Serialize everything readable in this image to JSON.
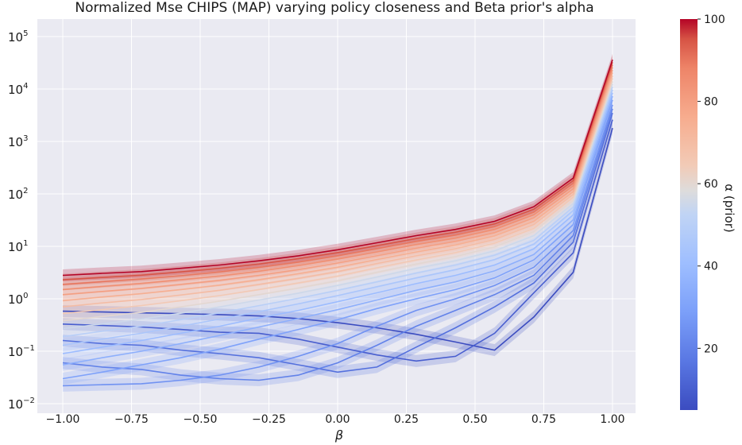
{
  "chart_data": {
    "type": "line",
    "title": "Normalized Mse CHIPS (MAP) varying policy closeness and Beta prior's alpha",
    "xlabel": "β",
    "ylabel": "",
    "yscale": "log",
    "xlim": [
      -1.0,
      1.0
    ],
    "ylim_log10": [
      -2,
      5
    ],
    "x": [
      -1.0,
      -0.857,
      -0.714,
      -0.571,
      -0.429,
      -0.286,
      -0.143,
      0.0,
      0.143,
      0.286,
      0.429,
      0.571,
      0.714,
      0.857,
      1.0
    ],
    "x_ticks": [
      -1.0,
      -0.75,
      -0.5,
      -0.25,
      0.0,
      0.25,
      0.5,
      0.75,
      1.0
    ],
    "x_tick_labels": [
      "−1.00",
      "−0.75",
      "−0.50",
      "−0.25",
      "0.00",
      "0.25",
      "0.50",
      "0.75",
      "1.00"
    ],
    "y_tick_labels": [
      {
        "value": 0.01,
        "base": "10",
        "exp": "−2"
      },
      {
        "value": 0.1,
        "base": "10",
        "exp": "−1"
      },
      {
        "value": 1,
        "base": "10",
        "exp": "0"
      },
      {
        "value": 10,
        "base": "10",
        "exp": "1"
      },
      {
        "value": 100,
        "base": "10",
        "exp": "2"
      },
      {
        "value": 1000,
        "base": "10",
        "exp": "3"
      },
      {
        "value": 10000,
        "base": "10",
        "exp": "4"
      },
      {
        "value": 100000,
        "base": "10",
        "exp": "5"
      }
    ],
    "grid": true,
    "band_relative_width": 0.3,
    "series": [
      {
        "name": "α=5",
        "alpha": 5,
        "values": [
          0.58,
          0.56,
          0.54,
          0.52,
          0.5,
          0.47,
          0.42,
          0.35,
          0.28,
          0.21,
          0.15,
          0.105,
          0.45,
          3.2,
          1800
        ]
      },
      {
        "name": "α=10",
        "alpha": 10,
        "values": [
          0.33,
          0.31,
          0.29,
          0.26,
          0.23,
          0.22,
          0.17,
          0.12,
          0.085,
          0.065,
          0.08,
          0.22,
          1.3,
          7.5,
          2600
        ]
      },
      {
        "name": "α=15",
        "alpha": 15,
        "values": [
          0.16,
          0.14,
          0.13,
          0.105,
          0.09,
          0.075,
          0.055,
          0.04,
          0.05,
          0.12,
          0.28,
          0.7,
          2.0,
          12.0,
          3500
        ]
      },
      {
        "name": "α=20",
        "alpha": 20,
        "values": [
          0.06,
          0.05,
          0.045,
          0.035,
          0.03,
          0.028,
          0.035,
          0.06,
          0.13,
          0.3,
          0.6,
          1.2,
          2.8,
          16.0,
          4200
        ]
      },
      {
        "name": "α=25",
        "alpha": 25,
        "values": [
          0.022,
          0.023,
          0.024,
          0.028,
          0.035,
          0.05,
          0.08,
          0.14,
          0.3,
          0.6,
          1.0,
          1.8,
          4.0,
          20.0,
          5000
        ]
      },
      {
        "name": "α=30",
        "alpha": 30,
        "values": [
          0.03,
          0.04,
          0.055,
          0.075,
          0.11,
          0.17,
          0.26,
          0.4,
          0.65,
          1.0,
          1.5,
          2.5,
          5.5,
          26.0,
          6200
        ]
      },
      {
        "name": "α=35",
        "alpha": 35,
        "values": [
          0.055,
          0.075,
          0.1,
          0.14,
          0.2,
          0.29,
          0.42,
          0.62,
          0.95,
          1.45,
          2.1,
          3.4,
          7.0,
          32.0,
          7300
        ]
      },
      {
        "name": "α=40",
        "alpha": 40,
        "values": [
          0.09,
          0.12,
          0.16,
          0.22,
          0.3,
          0.43,
          0.6,
          0.88,
          1.3,
          1.95,
          2.8,
          4.4,
          9.0,
          40.0,
          8500
        ]
      },
      {
        "name": "α=45",
        "alpha": 45,
        "values": [
          0.13,
          0.17,
          0.22,
          0.3,
          0.41,
          0.57,
          0.8,
          1.15,
          1.7,
          2.5,
          3.6,
          5.6,
          11.0,
          48.0,
          9700
        ]
      },
      {
        "name": "α=50",
        "alpha": 50,
        "values": [
          0.19,
          0.24,
          0.3,
          0.4,
          0.54,
          0.74,
          1.02,
          1.45,
          2.1,
          3.1,
          4.4,
          6.8,
          13.0,
          56.0,
          11000
        ]
      },
      {
        "name": "α=55",
        "alpha": 55,
        "values": [
          0.27,
          0.33,
          0.41,
          0.53,
          0.7,
          0.95,
          1.28,
          1.8,
          2.6,
          3.8,
          5.3,
          8.2,
          16.0,
          65.0,
          12500
        ]
      },
      {
        "name": "α=60",
        "alpha": 60,
        "values": [
          0.38,
          0.46,
          0.55,
          0.7,
          0.9,
          1.2,
          1.6,
          2.2,
          3.2,
          4.6,
          6.4,
          9.8,
          19.0,
          75.0,
          14000
        ]
      },
      {
        "name": "α=65",
        "alpha": 65,
        "values": [
          0.52,
          0.62,
          0.74,
          0.92,
          1.15,
          1.5,
          2.0,
          2.7,
          3.9,
          5.5,
          7.6,
          11.5,
          22.0,
          86.0,
          16000
        ]
      },
      {
        "name": "α=70",
        "alpha": 70,
        "values": [
          0.7,
          0.83,
          0.97,
          1.18,
          1.45,
          1.88,
          2.45,
          3.3,
          4.7,
          6.6,
          9.0,
          13.5,
          26.0,
          98.0,
          18000
        ]
      },
      {
        "name": "α=75",
        "alpha": 75,
        "values": [
          0.92,
          1.08,
          1.25,
          1.5,
          1.82,
          2.3,
          3.0,
          4.0,
          5.6,
          7.8,
          10.6,
          15.8,
          30.0,
          110.0,
          20500
        ]
      },
      {
        "name": "α=80",
        "alpha": 80,
        "values": [
          1.2,
          1.38,
          1.58,
          1.88,
          2.25,
          2.8,
          3.6,
          4.8,
          6.6,
          9.2,
          12.4,
          18.2,
          35.0,
          125.0,
          23000
        ]
      },
      {
        "name": "α=85",
        "alpha": 85,
        "values": [
          1.5,
          1.72,
          1.96,
          2.3,
          2.72,
          3.35,
          4.3,
          5.7,
          7.8,
          10.8,
          14.3,
          21.0,
          40.0,
          142.0,
          26000
        ]
      },
      {
        "name": "α=90",
        "alpha": 90,
        "values": [
          1.88,
          2.12,
          2.38,
          2.75,
          3.25,
          3.95,
          5.0,
          6.6,
          9.0,
          12.4,
          16.4,
          23.8,
          45.0,
          160.0,
          29000
        ]
      },
      {
        "name": "α=95",
        "alpha": 95,
        "values": [
          2.3,
          2.55,
          2.82,
          3.25,
          3.8,
          4.6,
          5.8,
          7.6,
          10.3,
          14.1,
          18.6,
          26.8,
          51.0,
          180.0,
          32500
        ]
      },
      {
        "name": "α=100",
        "alpha": 100,
        "values": [
          2.8,
          3.05,
          3.3,
          3.8,
          4.4,
          5.3,
          6.6,
          8.6,
          11.7,
          16.0,
          21.0,
          30.0,
          57.0,
          200.0,
          36000
        ]
      }
    ],
    "colorbar": {
      "label": "α (prior)",
      "range": [
        5,
        100
      ],
      "ticks": [
        20,
        40,
        60,
        80,
        100
      ],
      "colormap": "coolwarm",
      "colors": {
        "low": "#3b4cc0",
        "mid": "#dddddd",
        "high": "#b40426"
      }
    }
  }
}
